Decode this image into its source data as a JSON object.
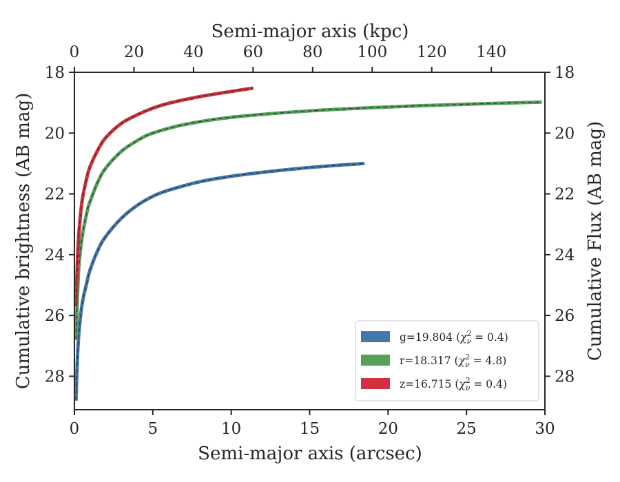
{
  "chart_data": {
    "type": "line",
    "x": {
      "label": "Semi-major axis (arcsec)",
      "lim": [
        0,
        30
      ],
      "ticks": [
        0,
        5,
        10,
        15,
        20,
        25,
        30
      ]
    },
    "x_top": {
      "label": "Semi-major axis (kpc)",
      "lim": [
        0,
        158
      ],
      "ticks": [
        0,
        20,
        40,
        60,
        80,
        100,
        120,
        140
      ]
    },
    "y": {
      "label": "Cumulative brightness (AB mag)",
      "lim": [
        18,
        29.1
      ],
      "inverted": true,
      "ticks": [
        18,
        20,
        22,
        24,
        26,
        28
      ]
    },
    "y_right": {
      "label": "Cumulative Flux (AB mag)",
      "ticks": [
        18,
        20,
        22,
        24,
        26,
        28
      ]
    },
    "legend_position": "lower-right",
    "series": [
      {
        "name": "g=19.804 (χ²ν = 0.4)",
        "name_parts": [
          "g=19.804 (",
          "χ",
          "2",
          "ν",
          " = 0.4)"
        ],
        "color": "#4477aa",
        "x": [
          0.1,
          0.2,
          0.3,
          0.5,
          0.8,
          1.0,
          1.5,
          2.0,
          3.0,
          4.0,
          5.0,
          6.0,
          8.0,
          10.0,
          12.0,
          14.0,
          16.0,
          18.5
        ],
        "y": [
          28.8,
          27.3,
          26.5,
          25.6,
          24.9,
          24.5,
          23.85,
          23.4,
          22.8,
          22.38,
          22.08,
          21.88,
          21.6,
          21.42,
          21.29,
          21.18,
          21.09,
          21.0
        ],
        "dashed_fit": true
      },
      {
        "name": "r=18.317 (χ²ν = 4.8)",
        "name_parts": [
          "r=18.317 (",
          "χ",
          "2",
          "ν",
          " = 4.8)"
        ],
        "color": "#55a15a",
        "x": [
          0.1,
          0.2,
          0.3,
          0.5,
          0.8,
          1.0,
          1.5,
          2.0,
          3.0,
          4.0,
          5.0,
          7.0,
          10.0,
          15.0,
          20.0,
          25.0,
          29.8
        ],
        "y": [
          26.8,
          25.3,
          24.3,
          23.4,
          22.6,
          22.25,
          21.6,
          21.15,
          20.6,
          20.25,
          20.0,
          19.72,
          19.48,
          19.27,
          19.14,
          19.05,
          18.98
        ],
        "dashed_fit": true
      },
      {
        "name": "z=16.715 (χ²ν = 0.4)",
        "name_parts": [
          "z=16.715 (",
          "χ",
          "2",
          "ν",
          " = 0.4)"
        ],
        "color": "#d1313c",
        "x": [
          0.1,
          0.15,
          0.2,
          0.3,
          0.5,
          0.8,
          1.0,
          1.5,
          2.0,
          3.0,
          4.0,
          5.0,
          6.0,
          8.0,
          10.0,
          11.4
        ],
        "y": [
          25.7,
          24.9,
          24.1,
          23.2,
          22.2,
          21.45,
          21.1,
          20.55,
          20.15,
          19.68,
          19.4,
          19.18,
          19.02,
          18.8,
          18.63,
          18.52
        ],
        "dashed_fit": true
      }
    ]
  }
}
